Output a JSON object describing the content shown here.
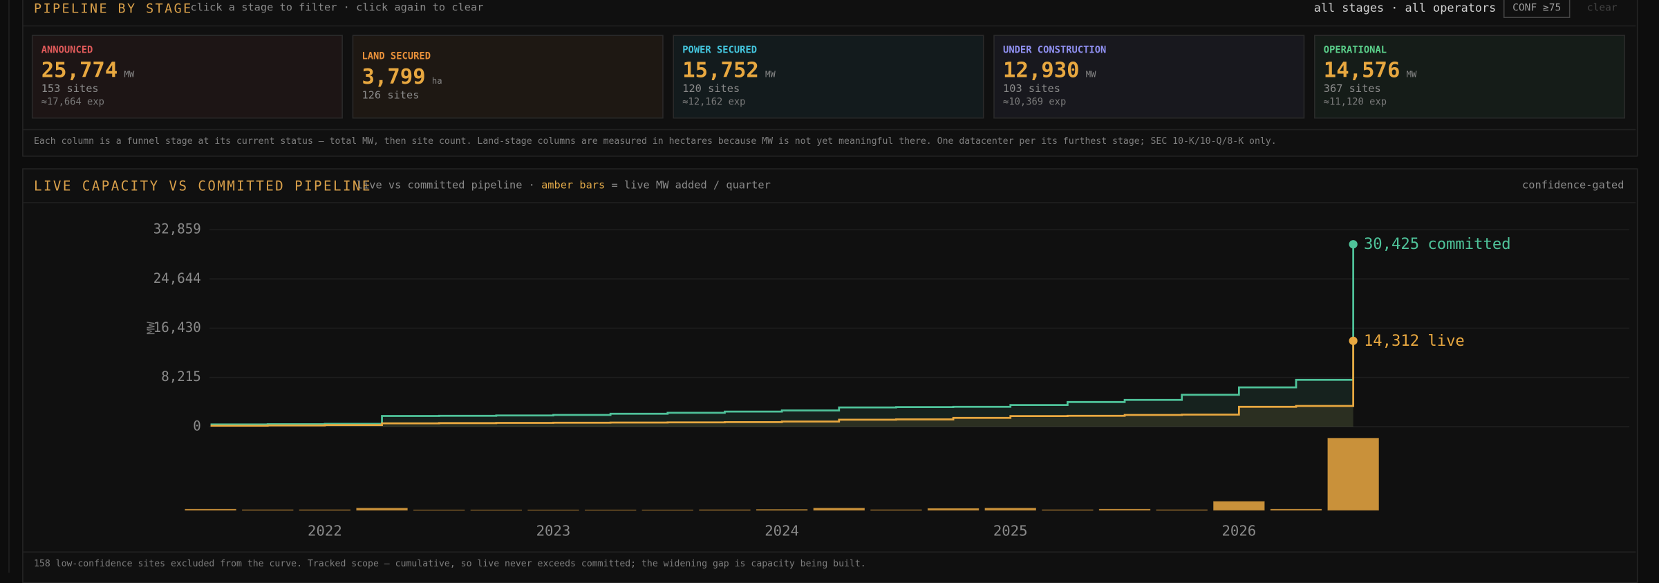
{
  "stage_panel": {
    "title": "PIPELINE BY STAGE",
    "subtitle": "click a stage to filter · click again to clear",
    "scope": "all stages · all operators",
    "conf_button": "CONF ≥75",
    "clear_button": "clear",
    "note": "Each column is a funnel stage at its current status — total MW, then site count. Land-stage columns are measured in hectares because MW is not yet meaningful there. One datacenter per its furthest stage; SEC 10-K/10-Q/8-K only.",
    "stages": [
      {
        "name": "ANNOUNCED",
        "value": "25,774",
        "unit": "MW",
        "sites": "153 sites",
        "expected": "≈17,664 exp",
        "color": "#e05a5a"
      },
      {
        "name": "LAND SECURED",
        "value": "3,799",
        "unit": "ha",
        "sites": "126 sites",
        "color": "#e8903a"
      },
      {
        "name": "POWER SECURED",
        "value": "15,752",
        "unit": "MW",
        "sites": "120 sites",
        "expected": "≈12,162 exp",
        "color": "#44c6de"
      },
      {
        "name": "UNDER CONSTRUCTION",
        "value": "12,930",
        "unit": "MW",
        "sites": "103 sites",
        "expected": "≈10,369 exp",
        "color": "#8f8ff0"
      },
      {
        "name": "OPERATIONAL",
        "value": "14,576",
        "unit": "MW",
        "sites": "367 sites",
        "expected": "≈11,120 exp",
        "color": "#5acf8a"
      }
    ]
  },
  "capacity_panel": {
    "title": "LIVE CAPACITY VS COMMITTED PIPELINE",
    "subtitle": [
      "live vs committed pipeline ·",
      "amber bars",
      "= live MW added / quarter"
    ],
    "badge": "confidence-gated",
    "footnote": "158 low-confidence sites excluded from the curve. Tracked scope — cumulative, so live never exceeds committed; the widening gap is capacity being built."
  },
  "chart_data": {
    "type": "step",
    "y_label": "MW",
    "categories": [
      null,
      null,
      "2022",
      null,
      null,
      null,
      "2023",
      null,
      null,
      null,
      "2024",
      null,
      null,
      null,
      "2025",
      null,
      null,
      null,
      "2026",
      null,
      null
    ],
    "ylim": [
      0,
      32859
    ],
    "yticks": [
      {
        "value": 32859,
        "label": "32,859"
      },
      {
        "value": 24644,
        "label": "24,644"
      },
      {
        "value": 16430,
        "label": "16,430"
      },
      {
        "value": 8215,
        "label": "8,215"
      },
      0
    ],
    "grid": true,
    "series": [
      {
        "name": "committed",
        "color": "#4fc39a",
        "values": [
          350,
          400,
          450,
          1770,
          1800,
          1850,
          1950,
          2150,
          2300,
          2500,
          2700,
          3200,
          3250,
          3300,
          3600,
          4100,
          4450,
          5300,
          6550,
          7800,
          30425
        ],
        "value_labels": [
          null,
          null,
          null,
          null,
          null,
          null,
          null,
          null,
          null,
          null,
          null,
          null,
          null,
          null,
          null,
          null,
          null,
          null,
          null,
          null,
          "30,425"
        ]
      },
      {
        "name": "live",
        "color": "#e8a840",
        "values": [
          150,
          200,
          250,
          550,
          580,
          610,
          640,
          670,
          700,
          750,
          850,
          1150,
          1200,
          1450,
          1750,
          1800,
          1950,
          2000,
          3300,
          3450,
          14312
        ],
        "value_labels": [
          null,
          null,
          null,
          null,
          null,
          null,
          null,
          null,
          null,
          null,
          null,
          null,
          null,
          null,
          null,
          null,
          null,
          null,
          null,
          null,
          "14,312"
        ]
      }
    ],
    "bars": {
      "color": "#c9913a",
      "values": [
        150,
        50,
        50,
        300,
        30,
        30,
        30,
        30,
        30,
        50,
        100,
        300,
        50,
        250,
        300,
        50,
        150,
        50,
        1300,
        150,
        10862
      ]
    }
  }
}
